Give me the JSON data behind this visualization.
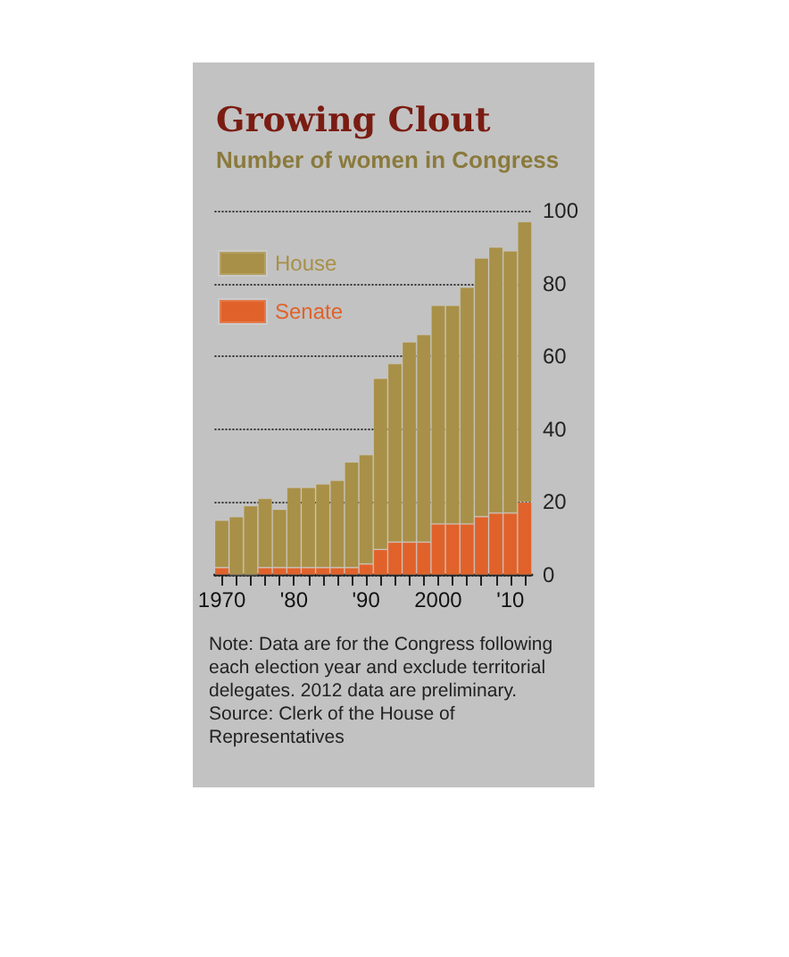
{
  "chart_data": {
    "type": "bar",
    "title": "Growing Clout",
    "subtitle": "Number of women in Congress",
    "categories": [
      "1970",
      null,
      null,
      null,
      null,
      "'80",
      null,
      null,
      null,
      null,
      "'90",
      null,
      null,
      null,
      null,
      "2000",
      null,
      null,
      null,
      null,
      "'10",
      null
    ],
    "stacked": true,
    "series": [
      {
        "name": "Senate",
        "color": "#e0622a",
        "values": [
          2,
          0,
          0,
          2,
          2,
          2,
          2,
          2,
          2,
          2,
          3,
          7,
          9,
          9,
          9,
          14,
          14,
          14,
          16,
          17,
          17,
          20
        ]
      },
      {
        "name": "House",
        "color": "#a89048",
        "values": [
          13,
          16,
          19,
          19,
          16,
          22,
          22,
          23,
          24,
          29,
          30,
          47,
          49,
          55,
          57,
          60,
          60,
          65,
          71,
          73,
          72,
          77
        ]
      }
    ],
    "ylim": [
      0,
      100
    ],
    "yticks": [
      0,
      20,
      40,
      60,
      80,
      100
    ],
    "grid": "y",
    "legend": "top left",
    "annotations": [
      "Note: Data are for the Congress following each election year and exclude territorial delegates. 2012 data are preliminary.",
      "Source: Clerk of the House of Representatives"
    ]
  }
}
